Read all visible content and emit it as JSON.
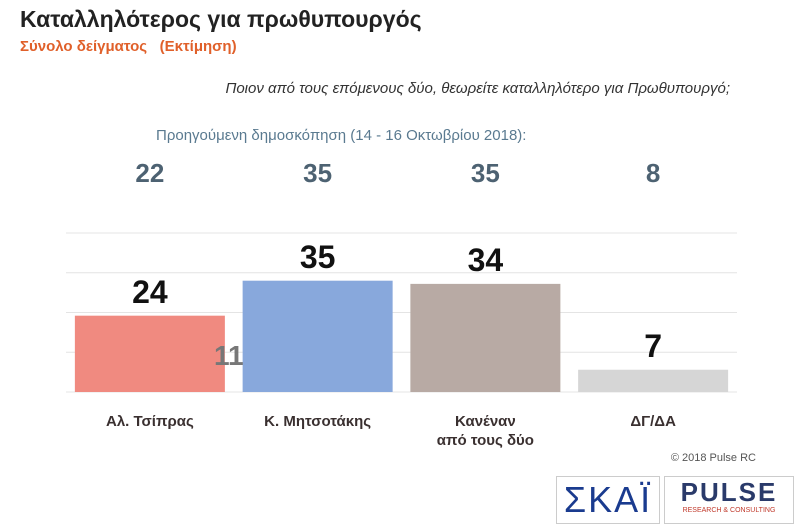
{
  "chart_data": {
    "type": "bar",
    "title": "Καταλληλότερος για πρωθυπουργός",
    "subtitle": "Σύνολο δείγματος   (Εκτίμηση)",
    "question": "Ποιον από τους επόμενους δύο, θεωρείτε καταλληλότερο για Πρωθυπουργό;",
    "previous_label": "Προηγούμενη δημοσκόπηση (14 - 16 Οκτωβρίου 2018):",
    "previous_values": [
      22,
      35,
      35,
      8
    ],
    "categories": [
      "Αλ. Τσίπρας",
      "Κ. Μητσοτάκης",
      "Κανέναν\nαπό τους δύο",
      "ΔΓ/ΔΑ"
    ],
    "values": [
      24,
      35,
      34,
      7
    ],
    "colors": [
      "#f08a80",
      "#88a8dc",
      "#b8aaa4",
      "#d6d6d6"
    ],
    "annotation": "11",
    "ylim": [
      0,
      50
    ],
    "yticks": [
      0,
      12.5,
      25,
      37.5,
      50
    ],
    "grid": true,
    "copyright": "© 2018 Pulse RC",
    "logo_left": "ΣΚΑΪ",
    "logo_right": "PULSE",
    "logo_right_sub": "RESEARCH & CONSULTING"
  }
}
